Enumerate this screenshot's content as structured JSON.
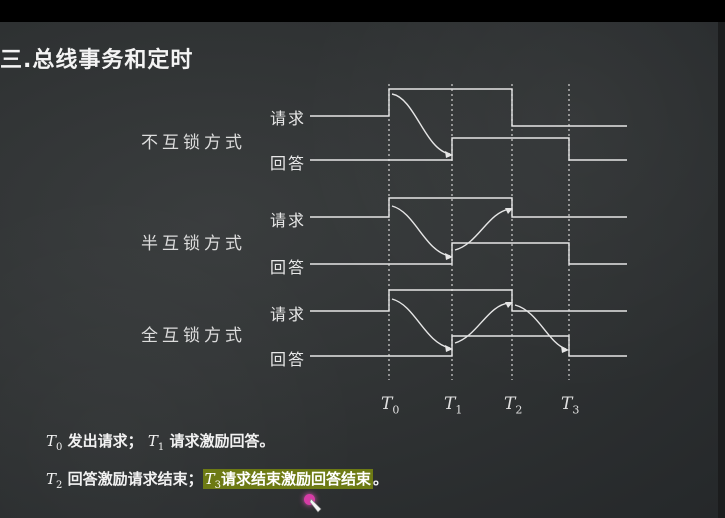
{
  "title": "三.总线事务和定时",
  "modes": [
    {
      "name": "不互锁方式",
      "request": "请求",
      "response": "回答"
    },
    {
      "name": "半互锁方式",
      "request": "请求",
      "response": "回答"
    },
    {
      "name": "全互锁方式",
      "request": "请求",
      "response": "回答"
    }
  ],
  "time_marks": [
    {
      "base": "T",
      "sub": "0"
    },
    {
      "base": "T",
      "sub": "1"
    },
    {
      "base": "T",
      "sub": "2"
    },
    {
      "base": "T",
      "sub": "3"
    }
  ],
  "caption1": {
    "t0": "T",
    "t0_sub": "0",
    "t0_text": "发出请求；",
    "t1": "T",
    "t1_sub": "1",
    "t1_text": "请求激励回答。"
  },
  "caption2": {
    "t2": "T",
    "t2_sub": "2",
    "t2_text": "回答激励请求结束；",
    "t3": "T",
    "t3_sub": "3",
    "t3_text": "请求结束激励回答结束",
    "end": "。"
  },
  "colors": {
    "board": "#2e3132",
    "line": "#e6e6e6",
    "highlight": "#6d7a14",
    "cursor": "#d63ca6"
  },
  "icons": [
    "pen-cursor-icon"
  ]
}
